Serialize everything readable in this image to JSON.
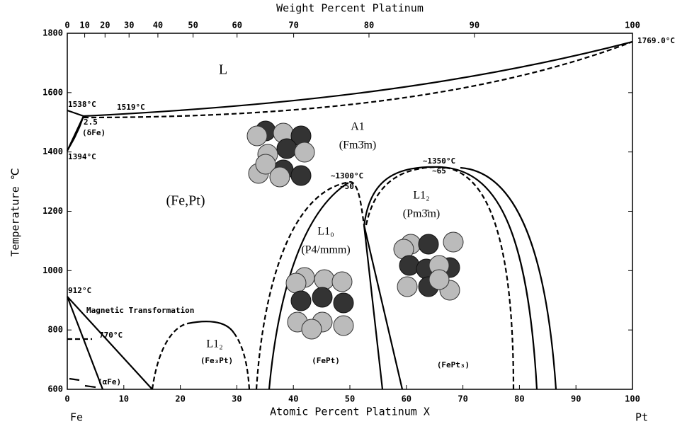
{
  "chart_data": {
    "type": "phase-diagram",
    "top_axis_title": "Weight Percent Platinum",
    "x_title": "Atomic Percent Platinum X",
    "y_title": "Temperature ℃",
    "xlim": [
      0,
      100
    ],
    "ylim": [
      600,
      1800
    ],
    "xticks": [
      0,
      10,
      20,
      30,
      40,
      50,
      60,
      70,
      80,
      90,
      100
    ],
    "yticks": [
      600,
      800,
      1000,
      1200,
      1400,
      1600,
      1800
    ],
    "top_ticks": [
      {
        "value": 0,
        "label": "0"
      },
      {
        "value": 3.08,
        "label": "10"
      },
      {
        "value": 6.68,
        "label": "20"
      },
      {
        "value": 10.93,
        "label": "30"
      },
      {
        "value": 16.03,
        "label": "40"
      },
      {
        "value": 22.26,
        "label": "50"
      },
      {
        "value": 30.04,
        "label": "60"
      },
      {
        "value": 40.05,
        "label": "70"
      },
      {
        "value": 53.38,
        "label": "80"
      },
      {
        "value": 72.04,
        "label": "90"
      },
      {
        "value": 100,
        "label": "100"
      }
    ],
    "left_element": "Fe",
    "right_element": "Pt",
    "annotations": [
      "L",
      "1538°C",
      "1519°C",
      "2.5",
      "(δFe)",
      "1394°C",
      "A1",
      "(Fm3̄m)",
      "~1300°C",
      "~50",
      "~1350°C",
      "~65",
      "(Fe,Pt)",
      "L1₂",
      "(Pm3̄m)",
      "L1₀",
      "(P4/mmm)",
      "912°C",
      "Magnetic Transformation",
      "770°C",
      "L1₂",
      "(Fe₃Pt)",
      "(FePt)",
      "(FePt₃)",
      "(αFe)",
      "1769.0°C"
    ]
  }
}
